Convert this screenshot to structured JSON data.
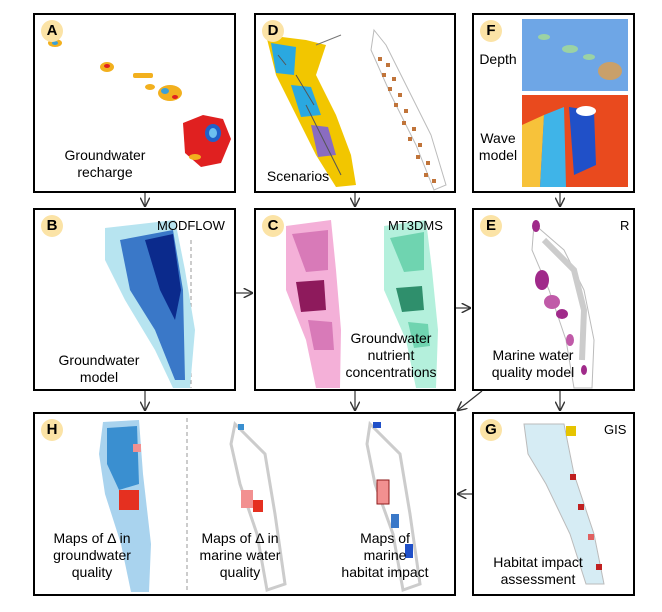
{
  "panels": {
    "A": {
      "letter": "A",
      "label": "Groundwater\nrecharge"
    },
    "D": {
      "letter": "D",
      "label": "Scenarios"
    },
    "F": {
      "letter": "F",
      "depth": "Depth",
      "wave": "Wave\nmodel"
    },
    "B": {
      "letter": "B",
      "tool": "MODFLOW",
      "label": "Groundwater\nmodel"
    },
    "C": {
      "letter": "C",
      "tool": "MT3DMS",
      "label": "Groundwater\nnutrient\nconcentrations"
    },
    "E": {
      "letter": "E",
      "tool": "R",
      "label": "Marine water\nquality model"
    },
    "H": {
      "letter": "H",
      "label1": "Maps of Δ in\ngroundwater\nquality",
      "label2": "Maps of Δ in\nmarine water\nquality",
      "label3": "Maps of\nmarine\nhabitat impact"
    },
    "G": {
      "letter": "G",
      "tool": "GIS",
      "label": "Habitat impact\nassessment"
    }
  },
  "colors": {
    "badge": "#fbe3a6",
    "blue_dark": "#0b2a8c",
    "blue_mid": "#3a78c8",
    "blue_light": "#b7e4f0",
    "pink": "#d87ab8",
    "green": "#6fd4b0",
    "red": "#e53020"
  }
}
